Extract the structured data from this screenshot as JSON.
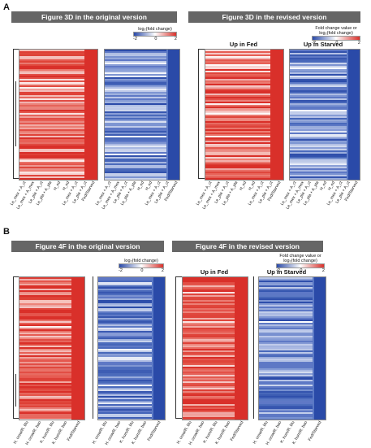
{
  "panelA": {
    "letter": "A",
    "original_header": "Figure 3D in the original version",
    "revised_header": "Figure 3D in the revised version",
    "legend_original": {
      "title": "log₂(fold change)",
      "ticks": [
        "-2",
        "0",
        "2"
      ]
    },
    "legend_revised": {
      "title": "Fold change value or log₂(fold change)",
      "ticks": [
        "-2",
        "0",
        "2"
      ]
    },
    "up_fed": "Up in Fed",
    "up_starved": "Up in Starved",
    "columns": [
      "Le_mex + A_ct",
      "Le_mex + A_mex",
      "Le_pla + A_ct",
      "Le_pla + A_pla",
      "H_ed",
      "H_ed",
      "Le_mex + A_ct",
      "Le_pla + A_ct",
      "Fed/Starved"
    ]
  },
  "panelB": {
    "letter": "B",
    "original_header": "Figure 4F in the original version",
    "revised_header": "Figure 4F in the revised version",
    "legend_original": {
      "title": "log₂(fold change)",
      "ticks": [
        "-2",
        "0",
        "2"
      ]
    },
    "legend_revised": {
      "title": "Fold change value or log₂(fold change)",
      "ticks": [
        "-2",
        "0",
        "2"
      ]
    },
    "up_fed": "Up in Fed",
    "up_starved": "Up in Starved",
    "columns": [
      "H. crow/R. blu",
      "H. crow/R. bao",
      "K. hum/R. blu",
      "K. hum/R. bao",
      "Fed/Starved"
    ]
  },
  "colors": {
    "red": "#d9302a",
    "blue": "#2a4aa8",
    "header": "#666666"
  }
}
